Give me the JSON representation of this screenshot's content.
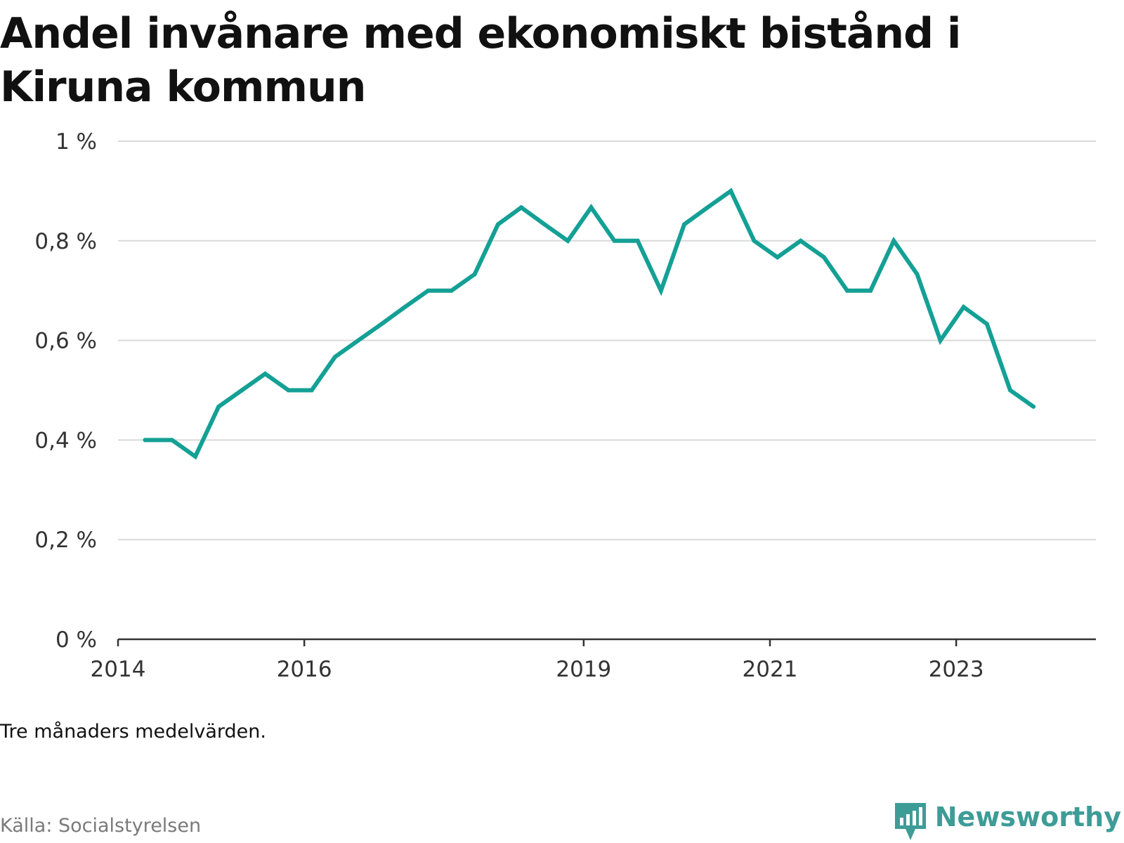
{
  "title": "Andel invånare med ekonomiskt bistånd i Kiruna kommun",
  "note": "Tre månaders medelvärden.",
  "source": "Källa: Socialstyrelsen",
  "brand": {
    "name": "Newsworthy",
    "logo_icon": "bar-chart-speech-bubble-icon",
    "color": "#3e9c97"
  },
  "chart_data": {
    "type": "line",
    "title": "Andel invånare med ekonomiskt bistånd i Kiruna kommun",
    "xlabel": "",
    "ylabel": "",
    "xlim": [
      2014.0,
      2024.5
    ],
    "ylim": [
      0,
      1
    ],
    "y_ticks": [
      {
        "value": 0,
        "label": "0 %"
      },
      {
        "value": 0.2,
        "label": "0,2 %"
      },
      {
        "value": 0.4,
        "label": "0,4 %"
      },
      {
        "value": 0.6,
        "label": "0,6 %"
      },
      {
        "value": 0.8,
        "label": "0,8 %"
      },
      {
        "value": 1,
        "label": "1 %"
      }
    ],
    "x_ticks": [
      {
        "value": 2014,
        "label": "2014"
      },
      {
        "value": 2016,
        "label": "2016"
      },
      {
        "value": 2019,
        "label": "2019"
      },
      {
        "value": 2021,
        "label": "2021"
      },
      {
        "value": 2023,
        "label": "2023"
      }
    ],
    "grid": true,
    "line_color": "#14a095",
    "series": [
      {
        "values": [
          {
            "x": 2014.29,
            "y": 0.4
          },
          {
            "x": 2014.58,
            "y": 0.4
          },
          {
            "x": 2014.83,
            "y": 0.367
          },
          {
            "x": 2015.08,
            "y": 0.467
          },
          {
            "x": 2015.33,
            "y": 0.5
          },
          {
            "x": 2015.58,
            "y": 0.533
          },
          {
            "x": 2015.83,
            "y": 0.5
          },
          {
            "x": 2016.08,
            "y": 0.5
          },
          {
            "x": 2016.33,
            "y": 0.567
          },
          {
            "x": 2016.58,
            "y": 0.6
          },
          {
            "x": 2016.83,
            "y": 0.633
          },
          {
            "x": 2017.08,
            "y": 0.667
          },
          {
            "x": 2017.33,
            "y": 0.7
          },
          {
            "x": 2017.58,
            "y": 0.7
          },
          {
            "x": 2017.83,
            "y": 0.733
          },
          {
            "x": 2018.08,
            "y": 0.833
          },
          {
            "x": 2018.33,
            "y": 0.867
          },
          {
            "x": 2018.58,
            "y": 0.833
          },
          {
            "x": 2018.83,
            "y": 0.8
          },
          {
            "x": 2019.08,
            "y": 0.867
          },
          {
            "x": 2019.33,
            "y": 0.8
          },
          {
            "x": 2019.58,
            "y": 0.8
          },
          {
            "x": 2019.83,
            "y": 0.7
          },
          {
            "x": 2020.08,
            "y": 0.833
          },
          {
            "x": 2020.33,
            "y": 0.867
          },
          {
            "x": 2020.58,
            "y": 0.9
          },
          {
            "x": 2020.83,
            "y": 0.8
          },
          {
            "x": 2021.08,
            "y": 0.767
          },
          {
            "x": 2021.33,
            "y": 0.8
          },
          {
            "x": 2021.58,
            "y": 0.767
          },
          {
            "x": 2021.83,
            "y": 0.7
          },
          {
            "x": 2022.08,
            "y": 0.7
          },
          {
            "x": 2022.33,
            "y": 0.8
          },
          {
            "x": 2022.58,
            "y": 0.733
          },
          {
            "x": 2022.83,
            "y": 0.6
          },
          {
            "x": 2023.08,
            "y": 0.667
          },
          {
            "x": 2023.33,
            "y": 0.633
          },
          {
            "x": 2023.58,
            "y": 0.5
          },
          {
            "x": 2023.83,
            "y": 0.467
          }
        ]
      }
    ]
  }
}
